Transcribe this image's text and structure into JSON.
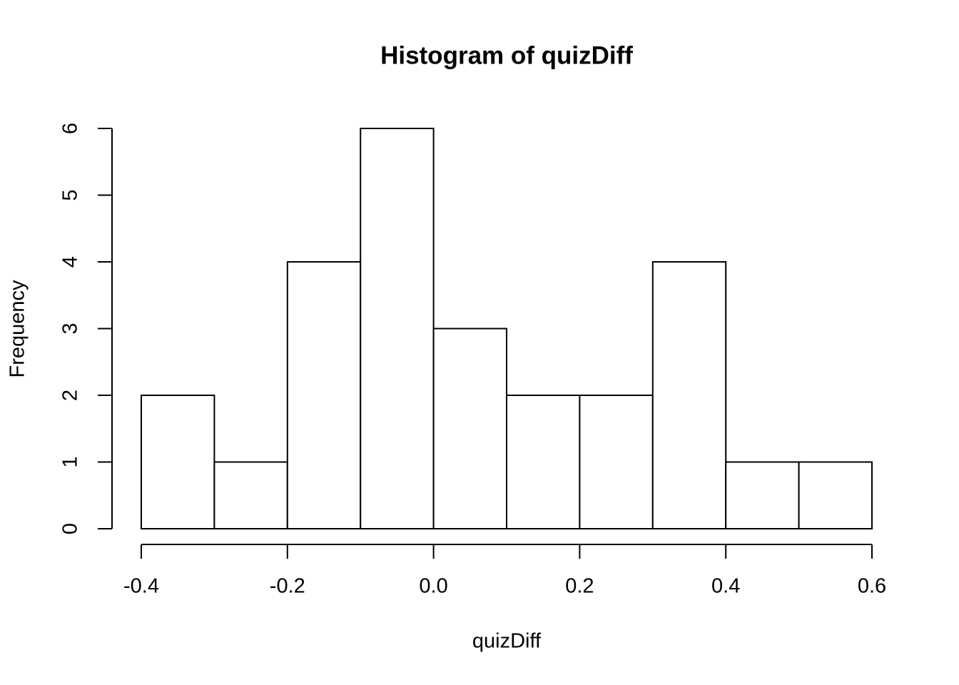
{
  "chart_data": {
    "type": "histogram",
    "title": "Histogram of quizDiff",
    "xlabel": "quizDiff",
    "ylabel": "Frequency",
    "bins": [
      -0.4,
      -0.3,
      -0.2,
      -0.1,
      0.0,
      0.1,
      0.2,
      0.3,
      0.4,
      0.5,
      0.6
    ],
    "values": [
      2,
      1,
      4,
      6,
      3,
      2,
      2,
      4,
      1,
      1
    ],
    "color": "#ffffff",
    "edgecolor": "#000000",
    "xlim": [
      -0.4,
      0.6
    ],
    "xticks": [
      -0.4,
      -0.2,
      {
        "value": 0,
        "label": "0.0"
      },
      0.2,
      0.4,
      0.6
    ],
    "ylim": [
      0,
      6
    ],
    "yticks": [
      0,
      1,
      2,
      3,
      4,
      5,
      6
    ],
    "grid": false
  }
}
